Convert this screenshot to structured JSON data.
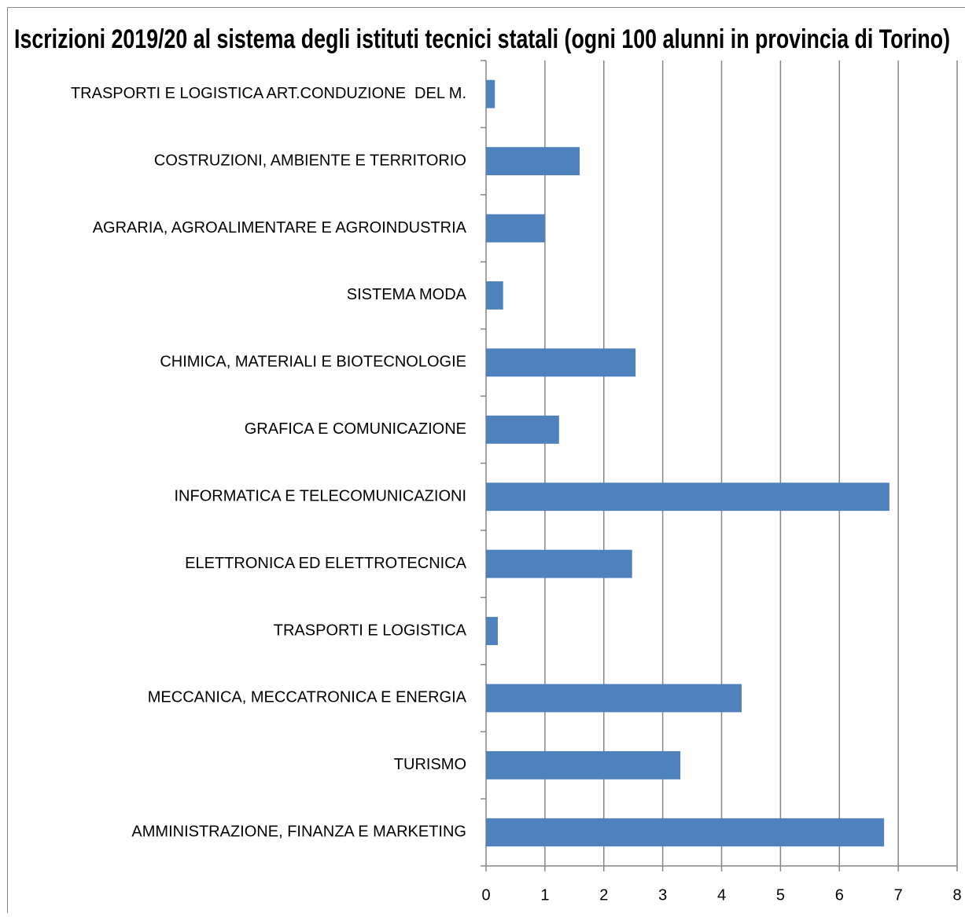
{
  "chart_data": {
    "type": "bar",
    "orientation": "horizontal",
    "title": "Iscrizioni 2019/20 al sistema degli istituti tecnici statali (ogni 100 alunni in provincia di Torino)",
    "categories": [
      "TRASPORTI E LOGISTICA ART.CONDUZIONE  DEL M.",
      "COSTRUZIONI, AMBIENTE E TERRITORIO",
      "AGRARIA, AGROALIMENTARE E AGROINDUSTRIA",
      "SISTEMA MODA",
      "CHIMICA, MATERIALI E BIOTECNOLOGIE",
      "GRAFICA E COMUNICAZIONE",
      "INFORMATICA E TELECOMUNICAZIONI",
      "ELETTRONICA ED ELETTROTECNICA",
      "TRASPORTI E LOGISTICA",
      "MECCANICA, MECCATRONICA E ENERGIA",
      "TURISMO",
      "AMMINISTRAZIONE, FINANZA E MARKETING"
    ],
    "values": [
      0.15,
      1.59,
      1.0,
      0.29,
      2.54,
      1.24,
      6.85,
      2.48,
      0.2,
      4.34,
      3.3,
      6.76
    ],
    "color": "#4f81bd",
    "xlim": [
      0,
      8
    ],
    "xticks": [
      0,
      1,
      2,
      3,
      4,
      5,
      6,
      7,
      8
    ],
    "grid": true
  }
}
